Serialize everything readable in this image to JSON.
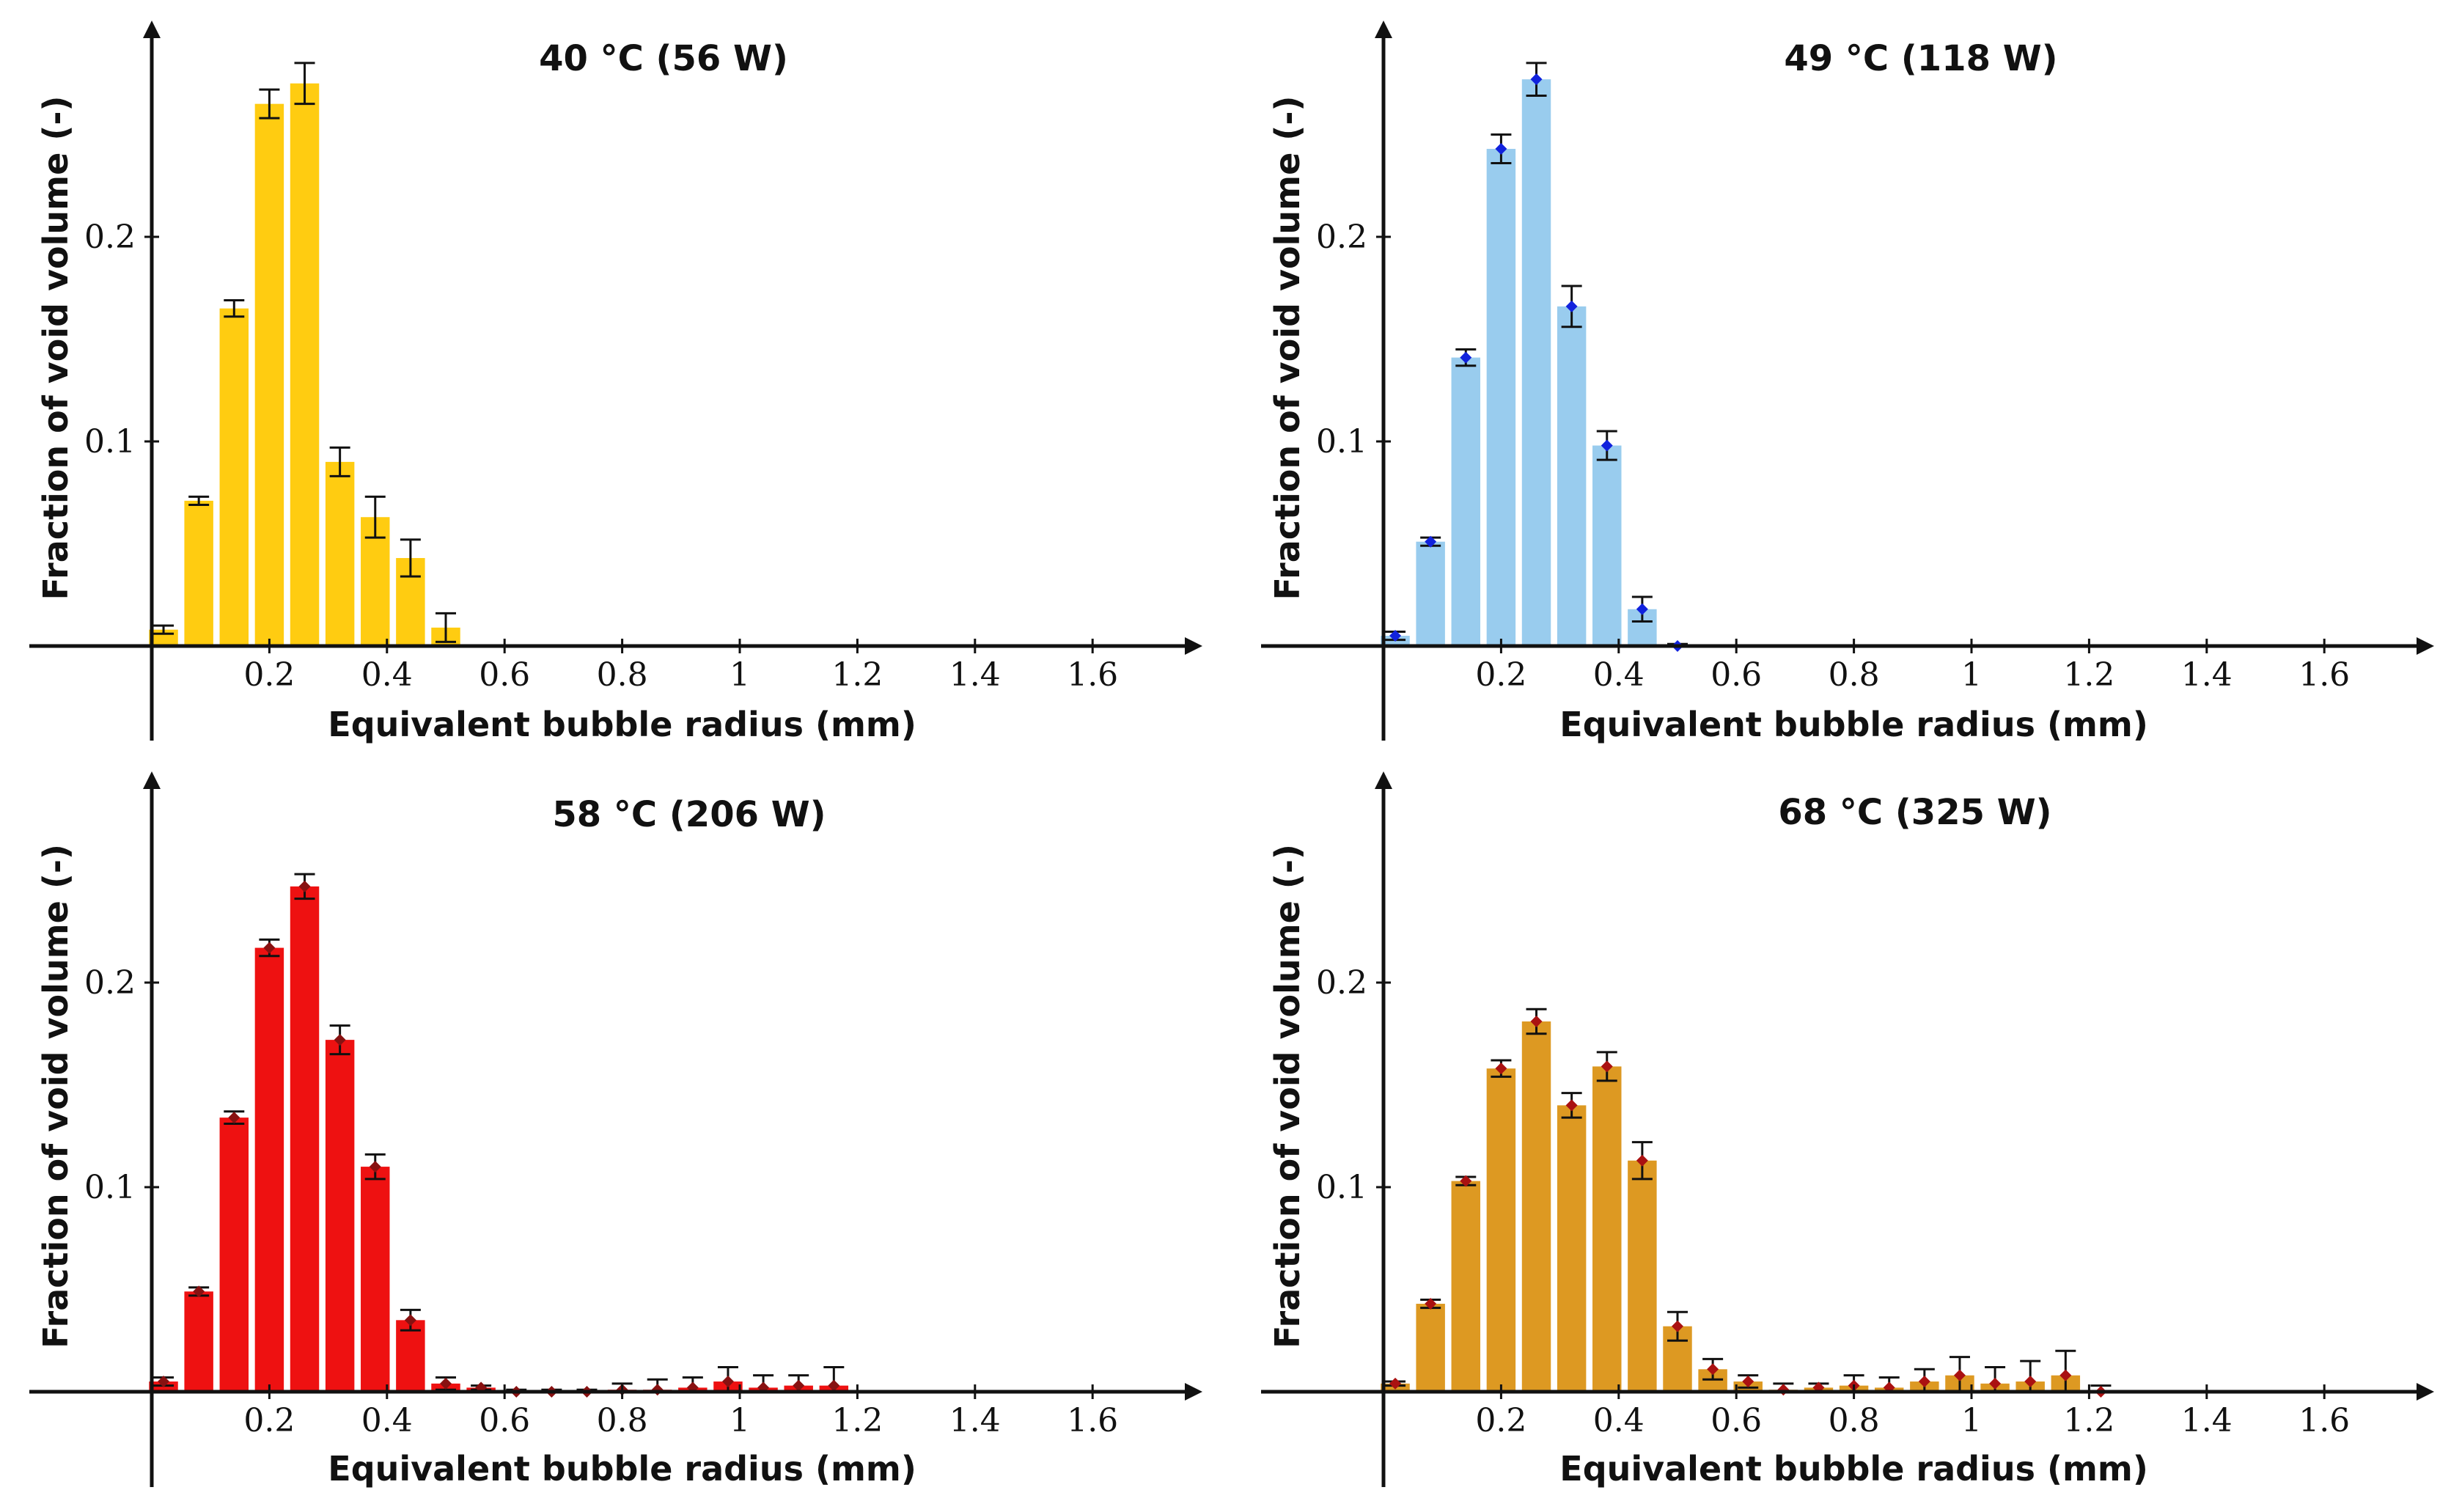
{
  "chart_data": [
    {
      "type": "bar",
      "title": "40 °C (56 W)",
      "xlabel": "Equivalent bubble radius (mm)",
      "ylabel": "Fraction of void volume (-)",
      "xlim": [
        -0.2,
        1.8
      ],
      "ylim": [
        0,
        0.3
      ],
      "xticks": [
        "0.2",
        "0.4",
        "0.6",
        "0.8",
        "1",
        "1.2",
        "1.4",
        "1.6"
      ],
      "yticks": [
        "0.1",
        "0.2"
      ],
      "bar_color": "#FFCC11",
      "marker_color": "",
      "bin_width": 0.06,
      "x": [
        0.02,
        0.08,
        0.14,
        0.2,
        0.26,
        0.32,
        0.38,
        0.44,
        0.5
      ],
      "values": [
        0.008,
        0.071,
        0.165,
        0.265,
        0.275,
        0.09,
        0.063,
        0.043,
        0.009
      ],
      "errors": [
        0.002,
        0.002,
        0.004,
        0.007,
        0.01,
        0.007,
        0.01,
        0.009,
        0.007
      ]
    },
    {
      "type": "bar",
      "title": "49 °C (118 W)",
      "xlabel": "Equivalent bubble radius (mm)",
      "ylabel": "Fraction of void volume (-)",
      "xlim": [
        -0.2,
        1.8
      ],
      "ylim": [
        0,
        0.3
      ],
      "xticks": [
        "0.2",
        "0.4",
        "0.6",
        "0.8",
        "1",
        "1.2",
        "1.4",
        "1.6"
      ],
      "yticks": [
        "0.1",
        "0.2"
      ],
      "bar_color": "#99CCEE",
      "marker_color": "#1122DD",
      "bin_width": 0.06,
      "x": [
        0.02,
        0.08,
        0.14,
        0.2,
        0.26,
        0.32,
        0.38,
        0.44,
        0.5
      ],
      "values": [
        0.005,
        0.051,
        0.141,
        0.243,
        0.277,
        0.166,
        0.098,
        0.018,
        0.0
      ],
      "errors": [
        0.002,
        0.002,
        0.004,
        0.007,
        0.008,
        0.01,
        0.007,
        0.006,
        0.001
      ]
    },
    {
      "type": "bar",
      "title": "58 °C (206 W)",
      "xlabel": "Equivalent bubble radius (mm)",
      "ylabel": "Fraction of void volume (-)",
      "xlim": [
        -0.2,
        1.8
      ],
      "ylim": [
        0,
        0.3
      ],
      "xticks": [
        "0.2",
        "0.4",
        "0.6",
        "0.8",
        "1",
        "1.2",
        "1.4",
        "1.6"
      ],
      "yticks": [
        "0.1",
        "0.2"
      ],
      "bar_color": "#EE1111",
      "marker_color": "#881111",
      "bin_width": 0.06,
      "x": [
        0.02,
        0.08,
        0.14,
        0.2,
        0.26,
        0.32,
        0.38,
        0.44,
        0.5,
        0.56,
        0.62,
        0.68,
        0.74,
        0.8,
        0.86,
        0.92,
        0.98,
        1.04,
        1.1,
        1.16
      ],
      "values": [
        0.005,
        0.049,
        0.134,
        0.217,
        0.247,
        0.172,
        0.11,
        0.035,
        0.004,
        0.002,
        0.0,
        0.0,
        0.0,
        0.001,
        0.001,
        0.002,
        0.005,
        0.002,
        0.003,
        0.003
      ],
      "errors": [
        0.002,
        0.002,
        0.003,
        0.004,
        0.006,
        0.007,
        0.006,
        0.005,
        0.003,
        0.001,
        0.001,
        0.001,
        0.001,
        0.003,
        0.005,
        0.005,
        0.007,
        0.006,
        0.005,
        0.009
      ]
    },
    {
      "type": "bar",
      "title": "68 °C (325 W)",
      "xlabel": "Equivalent bubble radius (mm)",
      "ylabel": "Fraction of void volume (-)",
      "xlim": [
        -0.2,
        1.8
      ],
      "ylim": [
        0,
        0.3
      ],
      "xticks": [
        "0.2",
        "0.4",
        "0.6",
        "0.8",
        "1",
        "1.2",
        "1.4",
        "1.6"
      ],
      "yticks": [
        "0.1",
        "0.2"
      ],
      "bar_color": "#DD9922",
      "marker_color": "#AA1111",
      "bin_width": 0.06,
      "x": [
        0.02,
        0.08,
        0.14,
        0.2,
        0.26,
        0.32,
        0.38,
        0.44,
        0.5,
        0.56,
        0.62,
        0.68,
        0.74,
        0.8,
        0.86,
        0.92,
        0.98,
        1.04,
        1.1,
        1.16,
        1.22
      ],
      "values": [
        0.004,
        0.043,
        0.103,
        0.158,
        0.181,
        0.14,
        0.159,
        0.113,
        0.032,
        0.011,
        0.005,
        0.001,
        0.002,
        0.003,
        0.002,
        0.005,
        0.008,
        0.004,
        0.005,
        0.008,
        0.0
      ],
      "errors": [
        0.001,
        0.002,
        0.002,
        0.004,
        0.006,
        0.006,
        0.007,
        0.009,
        0.007,
        0.005,
        0.003,
        0.003,
        0.002,
        0.005,
        0.005,
        0.006,
        0.009,
        0.008,
        0.01,
        0.012,
        0.003
      ]
    }
  ]
}
